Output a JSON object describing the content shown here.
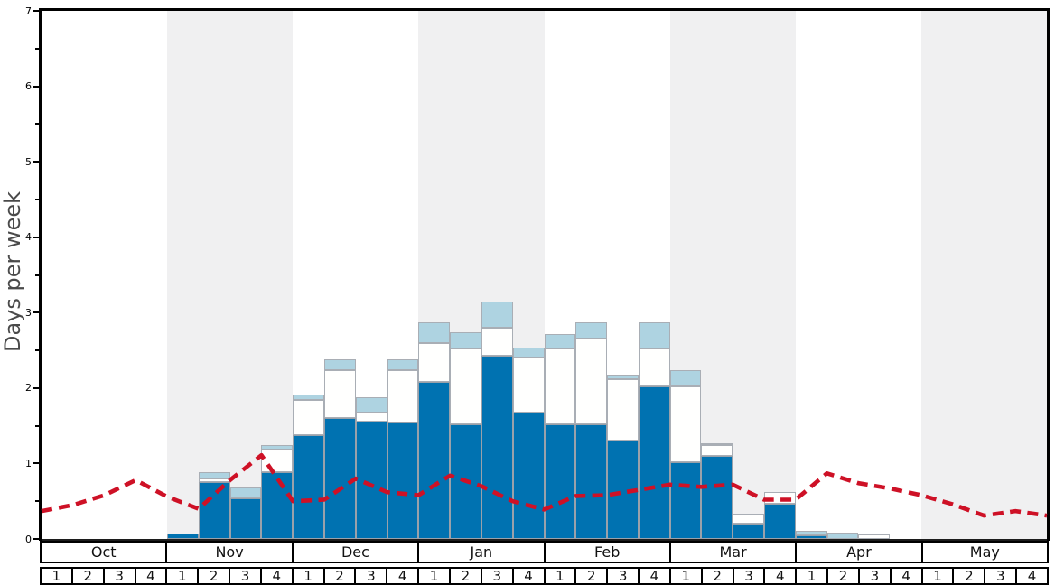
{
  "chart_data": {
    "type": "bar",
    "title": "",
    "xlabel": "",
    "ylabel": "Days per week",
    "ylim": [
      0,
      7
    ],
    "yticks_major": [
      0,
      1,
      2,
      3,
      4,
      5,
      6,
      7
    ],
    "ytick_minor_step": 0.5,
    "grid": "off",
    "legend": "none",
    "months": [
      "Oct",
      "Nov",
      "Dec",
      "Jan",
      "Feb",
      "Mar",
      "Apr",
      "May"
    ],
    "week_labels": [
      "1",
      "2",
      "3",
      "4"
    ],
    "stacking_note": "values are cumulative stack tops in days-per-week: dark blue bottom, white middle, light blue top",
    "weeks": [
      {
        "month": "Oct",
        "week": 1,
        "dark": 0,
        "white": 0,
        "light": 0
      },
      {
        "month": "Oct",
        "week": 2,
        "dark": 0,
        "white": 0,
        "light": 0
      },
      {
        "month": "Oct",
        "week": 3,
        "dark": 0,
        "white": 0,
        "light": 0
      },
      {
        "month": "Oct",
        "week": 4,
        "dark": 0,
        "white": 0,
        "light": 0
      },
      {
        "month": "Nov",
        "week": 1,
        "dark": 0.07,
        "white": 0.07,
        "light": 0.07
      },
      {
        "month": "Nov",
        "week": 2,
        "dark": 0.75,
        "white": 0.8,
        "light": 0.88
      },
      {
        "month": "Nov",
        "week": 3,
        "dark": 0.54,
        "white": 0.54,
        "light": 0.68
      },
      {
        "month": "Nov",
        "week": 4,
        "dark": 0.89,
        "white": 1.18,
        "light": 1.25
      },
      {
        "month": "Dec",
        "week": 1,
        "dark": 1.38,
        "white": 1.84,
        "light": 1.91
      },
      {
        "month": "Dec",
        "week": 2,
        "dark": 1.6,
        "white": 2.24,
        "light": 2.38
      },
      {
        "month": "Dec",
        "week": 3,
        "dark": 1.56,
        "white": 1.68,
        "light": 1.88
      },
      {
        "month": "Dec",
        "week": 4,
        "dark": 1.54,
        "white": 2.24,
        "light": 2.38
      },
      {
        "month": "Jan",
        "week": 1,
        "dark": 2.08,
        "white": 2.6,
        "light": 2.87
      },
      {
        "month": "Jan",
        "week": 2,
        "dark": 1.52,
        "white": 2.52,
        "light": 2.74
      },
      {
        "month": "Jan",
        "week": 3,
        "dark": 2.43,
        "white": 2.8,
        "light": 3.15
      },
      {
        "month": "Jan",
        "week": 4,
        "dark": 1.67,
        "white": 2.4,
        "light": 2.54
      },
      {
        "month": "Feb",
        "week": 1,
        "dark": 1.52,
        "white": 2.52,
        "light": 2.72
      },
      {
        "month": "Feb",
        "week": 2,
        "dark": 1.52,
        "white": 2.66,
        "light": 2.87
      },
      {
        "month": "Feb",
        "week": 3,
        "dark": 1.3,
        "white": 2.12,
        "light": 2.18
      },
      {
        "month": "Feb",
        "week": 4,
        "dark": 2.02,
        "white": 2.52,
        "light": 2.87
      },
      {
        "month": "Mar",
        "week": 1,
        "dark": 1.02,
        "white": 2.02,
        "light": 2.24
      },
      {
        "month": "Mar",
        "week": 2,
        "dark": 1.1,
        "white": 1.25,
        "light": 1.27
      },
      {
        "month": "Mar",
        "week": 3,
        "dark": 0.2,
        "white": 0.34,
        "light": 0.34
      },
      {
        "month": "Mar",
        "week": 4,
        "dark": 0.47,
        "white": 0.62,
        "light": 0.62
      },
      {
        "month": "Apr",
        "week": 1,
        "dark": 0.05,
        "white": 0.05,
        "light": 0.11
      },
      {
        "month": "Apr",
        "week": 2,
        "dark": 0,
        "white": 0,
        "light": 0.08
      },
      {
        "month": "Apr",
        "week": 3,
        "dark": 0,
        "white": 0.06,
        "light": 0.06
      },
      {
        "month": "Apr",
        "week": 4,
        "dark": 0,
        "white": 0,
        "light": 0
      },
      {
        "month": "May",
        "week": 1,
        "dark": 0,
        "white": 0,
        "light": 0
      },
      {
        "month": "May",
        "week": 2,
        "dark": 0,
        "white": 0,
        "light": 0
      },
      {
        "month": "May",
        "week": 3,
        "dark": 0,
        "white": 0,
        "light": 0
      },
      {
        "month": "May",
        "week": 4,
        "dark": 0,
        "white": 0,
        "light": 0
      }
    ],
    "red_line": {
      "style": "dashed",
      "x_unit": "week boundaries from start of Oct to end of May (33 points)",
      "values": [
        0.37,
        0.45,
        0.58,
        0.78,
        0.56,
        0.4,
        0.78,
        1.11,
        0.5,
        0.52,
        0.8,
        0.62,
        0.58,
        0.84,
        0.7,
        0.5,
        0.39,
        0.57,
        0.58,
        0.65,
        0.72,
        0.69,
        0.72,
        0.52,
        0.52,
        0.87,
        0.74,
        0.67,
        0.58,
        0.46,
        0.31,
        0.37,
        0.31
      ]
    },
    "colors": {
      "dark_blue": "#0072b1",
      "white_bar": "#fffffe",
      "light_blue": "#aed3e1",
      "bar_border": "#a9aeb5",
      "red_line": "#ce1126",
      "stripe_gray": "#f0f0f1",
      "stripe_white": "#ffffff",
      "axis": "#000000",
      "ylabel_gray": "#4a4a4a"
    }
  }
}
